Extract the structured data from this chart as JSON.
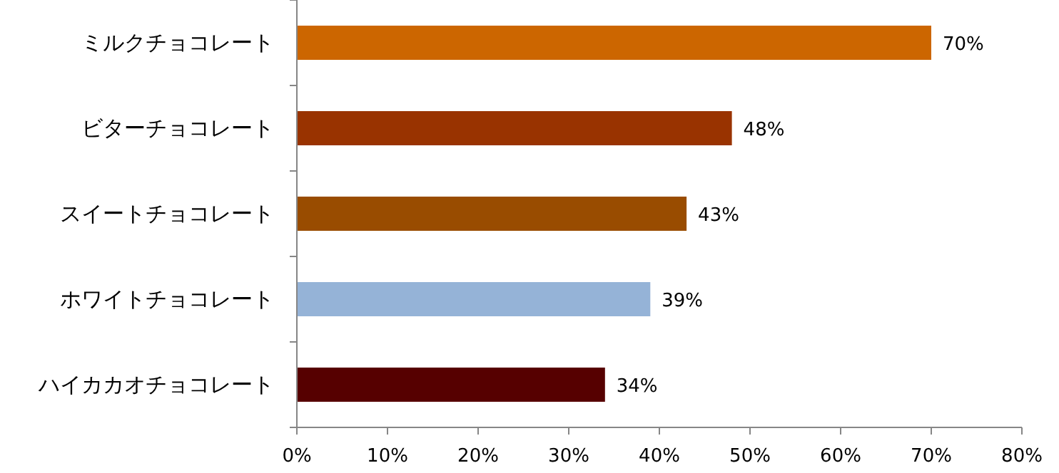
{
  "chart_data": {
    "type": "bar",
    "orientation": "horizontal",
    "categories": [
      "ミルクチョコレート",
      "ビターチョコレート",
      "スイートチョコレート",
      "ホワイトチョコレート",
      "ハイカカオチョコレート"
    ],
    "values": [
      70,
      48,
      43,
      39,
      34
    ],
    "colors": [
      "#cc6600",
      "#993300",
      "#994c00",
      "#95b3d7",
      "#560000"
    ],
    "xlim": [
      0,
      80
    ],
    "xticks": [
      {
        "value": 0,
        "label": "0%"
      },
      {
        "value": 10,
        "label": "10%"
      },
      {
        "value": 20,
        "label": "20%"
      },
      {
        "value": 30,
        "label": "30%"
      },
      {
        "value": 40,
        "label": "40%"
      },
      {
        "value": 50,
        "label": "50%"
      },
      {
        "value": 60,
        "label": "60%"
      },
      {
        "value": 70,
        "label": "70%"
      },
      {
        "value": 80,
        "label": "80%"
      }
    ],
    "value_labels": [
      "70%",
      "48%",
      "43%",
      "39%",
      "34%"
    ],
    "grid": false
  }
}
